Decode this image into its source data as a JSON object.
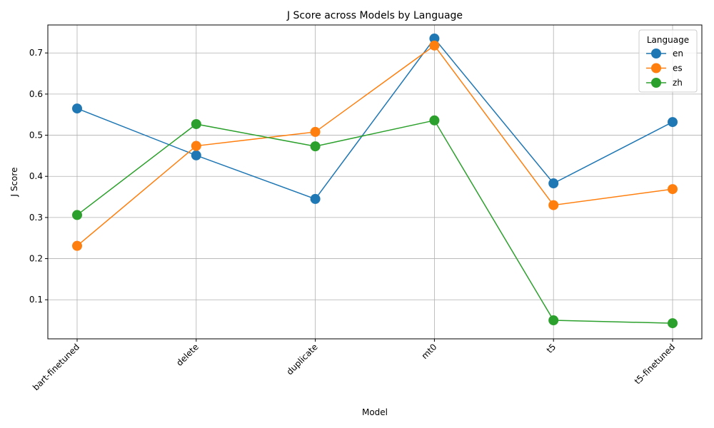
{
  "chart_data": {
    "type": "line",
    "title": "J Score across Models by Language",
    "xlabel": "Model",
    "ylabel": "J Score",
    "categories": [
      "bart-finetuned",
      "delete",
      "duplicate",
      "mt0",
      "t5",
      "t5-finetuned"
    ],
    "ylim": [
      0.005,
      0.768
    ],
    "yticks": [
      0.1,
      0.2,
      0.3,
      0.4,
      0.5,
      0.6,
      0.7
    ],
    "ytick_labels": [
      "0.1",
      "0.2",
      "0.3",
      "0.4",
      "0.5",
      "0.6",
      "0.7"
    ],
    "grid": true,
    "legend": {
      "title": "Language",
      "position": "top-right"
    },
    "series": [
      {
        "name": "en",
        "color": "#1f77b4",
        "values": [
          0.565,
          0.451,
          0.345,
          0.735,
          0.383,
          0.532
        ]
      },
      {
        "name": "es",
        "color": "#ff7f0e",
        "values": [
          0.231,
          0.474,
          0.508,
          0.718,
          0.33,
          0.369
        ]
      },
      {
        "name": "zh",
        "color": "#2ca02c",
        "values": [
          0.306,
          0.527,
          0.473,
          0.536,
          0.05,
          0.043
        ]
      }
    ]
  }
}
